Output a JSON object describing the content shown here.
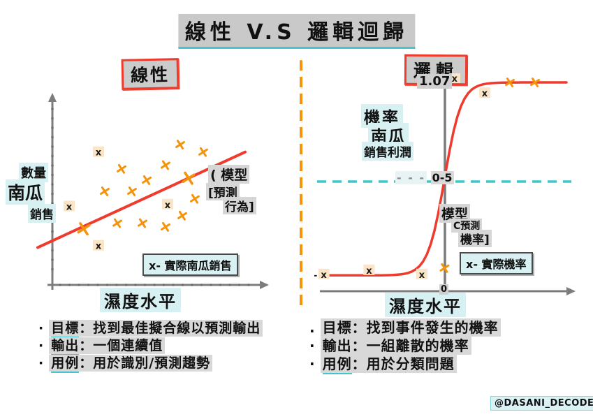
{
  "title": "線性 V.S 邏輯迴歸",
  "watermark": "@DASANI_DECODED",
  "colors": {
    "red": "#ef3b2d",
    "orange": "#f5930b",
    "teal": "#3ec6c9",
    "cyan_highlight": "#d7f0f2",
    "gray_highlight": "#cdcdcd",
    "peach_highlight": "#fbe5c7",
    "axis_gray": "#7c7c7c",
    "black": "#1a1a1a"
  },
  "left": {
    "header": "線性",
    "ylabels": [
      "數量",
      "南瓜",
      "銷售"
    ],
    "xlabel": "濕度水平",
    "annotation": [
      "( 模型",
      "[預測",
      "行為]"
    ],
    "legend": "x- 實際南瓜銷售",
    "notes": [
      {
        "bullet": "·",
        "keyword": "目標",
        "rest": "：找到最佳擬合線以預測輸出"
      },
      {
        "bullet": "·",
        "keyword": "輸出",
        "rest": "：一個連續值"
      },
      {
        "bullet": "·",
        "keyword": "用例",
        "rest": "：用於識別/預測趨勢"
      }
    ]
  },
  "right": {
    "header": "邏輯",
    "top_value": "1.07",
    "ylabels": [
      "機率",
      "南瓜",
      "銷售利潤"
    ],
    "xlabel": "濕度水平",
    "threshold_dashes": "- - -",
    "threshold_label": "0-5",
    "origin_label": "0",
    "annotation": [
      "模型",
      "C預測",
      "機率]"
    ],
    "legend": "x- 實際機率",
    "notes": [
      {
        "bullet": ".",
        "keyword": "目標",
        "rest": "：找到事件發生的機率"
      },
      {
        "bullet": "·",
        "keyword": "輸出",
        "rest": "：一組離散的機率"
      },
      {
        "bullet": "·",
        "keyword": "用例",
        "rest": "：用於分類問題"
      }
    ]
  },
  "chart_data": [
    {
      "type": "scatter",
      "title": "線性",
      "xlabel": "濕度水平",
      "ylabel": "數量 南瓜 銷售",
      "legend": "x- 實際南瓜銷售",
      "x_range": [
        0,
        100
      ],
      "y_range": [
        0,
        100
      ],
      "fit_line": {
        "x1": -7,
        "y1": 20,
        "x2": 92,
        "y2": 71
      },
      "series": [
        {
          "name": "actual-pumpkin-sales-orange",
          "marker": "orange-x",
          "points": [
            [
              33,
              62
            ],
            [
              61,
              75
            ],
            [
              72,
              71
            ],
            [
              54,
              64
            ],
            [
              45,
              56
            ],
            [
              25,
              50
            ],
            [
              38,
              50
            ],
            [
              65,
              57,
              "big"
            ],
            [
              68,
              46
            ],
            [
              62,
              37
            ],
            [
              31,
              33
            ],
            [
              43,
              33
            ],
            [
              54,
              31
            ],
            [
              15,
              30,
              "big"
            ]
          ]
        },
        {
          "name": "actual-pumpkin-sales-highlighted",
          "marker": "black-x-highlight",
          "points": [
            [
              22,
              71
            ],
            [
              8,
              42
            ],
            [
              55,
              43
            ],
            [
              22,
              21
            ]
          ]
        }
      ]
    },
    {
      "type": "line",
      "title": "邏輯",
      "xlabel": "濕度水平",
      "ylabel": "機率 南瓜 銷售利潤",
      "legend": "x- 實際機率",
      "x_range": [
        0,
        100
      ],
      "y_range": [
        0,
        110
      ],
      "sigmoid": {
        "x0": 49,
        "k": 0.3,
        "ymin": 7.5,
        "ymax": 99
      },
      "threshold_line": {
        "y": 52,
        "label": "0-5",
        "style": "teal-dashed"
      },
      "top_asymptote_label": "1.07",
      "origin_label": "0",
      "series": [
        {
          "name": "actual-probability-orange",
          "marker": "orange-x",
          "points": [
            [
              49,
              11
            ],
            [
              75,
              99
            ],
            [
              85,
              99
            ]
          ]
        },
        {
          "name": "actual-probability-highlighted",
          "marker": "black-x-highlight",
          "points": [
            [
              1,
              8,
              "dash"
            ],
            [
              19,
              10
            ],
            [
              40,
              8
            ],
            [
              65,
              94
            ],
            [
              53,
              101
            ]
          ]
        }
      ]
    }
  ]
}
